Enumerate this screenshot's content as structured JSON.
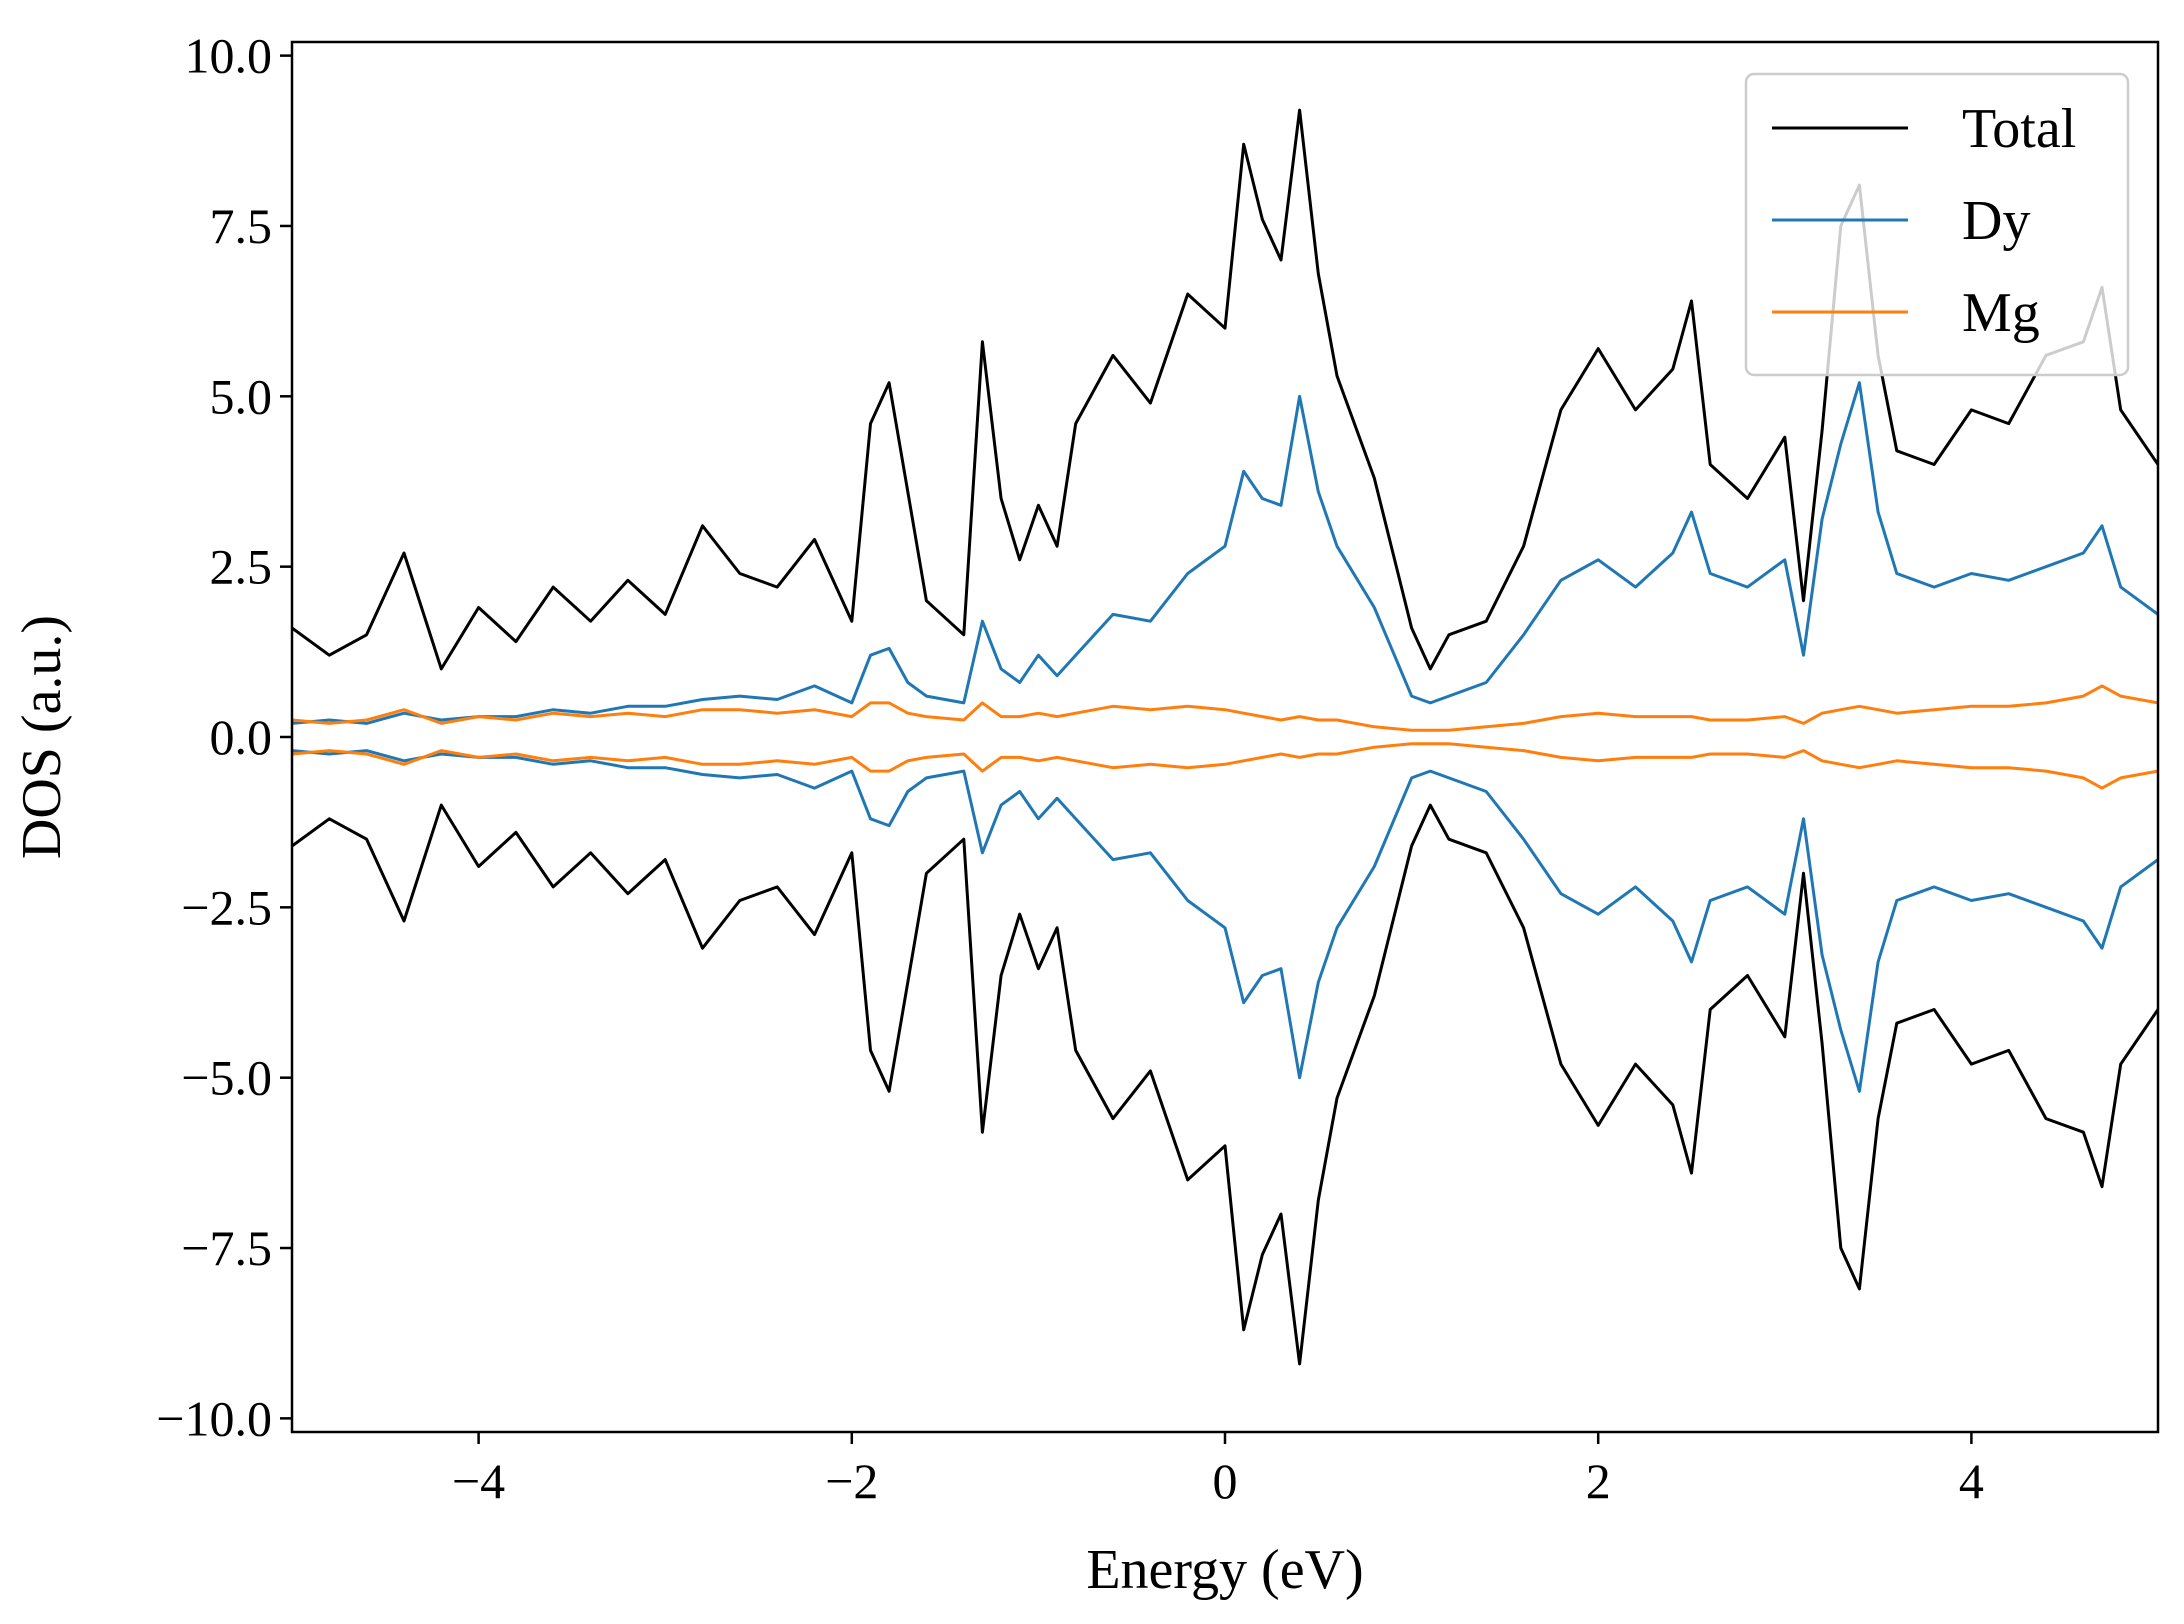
{
  "chart_data": {
    "type": "line",
    "xlabel": "Energy (eV)",
    "ylabel": "DOS (a.u.)",
    "xlim": [
      -5,
      5
    ],
    "ylim": [
      -10.2,
      10.2
    ],
    "xticks": [
      -4,
      -2,
      0,
      2,
      4
    ],
    "xtick_labels": [
      "−4",
      "−2",
      "0",
      "2",
      "4"
    ],
    "yticks": [
      10,
      7.5,
      5,
      2.5,
      0,
      -2.5,
      -5,
      -7.5,
      -10
    ],
    "ytick_labels": [
      "10.0",
      "7.5",
      "5.0",
      "2.5",
      "0.0",
      "−2.5",
      "−5.0",
      "−7.5",
      "−10.0"
    ],
    "grid": false,
    "legend_position": "top-right",
    "mirrored_spin_down": true,
    "x": [
      -5.0,
      -4.8,
      -4.6,
      -4.4,
      -4.2,
      -4.0,
      -3.8,
      -3.6,
      -3.4,
      -3.2,
      -3.0,
      -2.8,
      -2.6,
      -2.4,
      -2.2,
      -2.0,
      -1.9,
      -1.8,
      -1.7,
      -1.6,
      -1.4,
      -1.3,
      -1.2,
      -1.1,
      -1.0,
      -0.9,
      -0.8,
      -0.6,
      -0.4,
      -0.2,
      0.0,
      0.1,
      0.2,
      0.3,
      0.4,
      0.5,
      0.6,
      0.8,
      1.0,
      1.1,
      1.2,
      1.4,
      1.6,
      1.8,
      2.0,
      2.2,
      2.4,
      2.5,
      2.6,
      2.8,
      3.0,
      3.1,
      3.2,
      3.3,
      3.4,
      3.5,
      3.6,
      3.8,
      4.0,
      4.2,
      4.4,
      4.6,
      4.7,
      4.8,
      5.0
    ],
    "series": [
      {
        "name": "Total",
        "color": "#000000",
        "values": [
          1.6,
          1.2,
          1.5,
          2.7,
          1.0,
          1.9,
          1.4,
          2.2,
          1.7,
          2.3,
          1.8,
          3.1,
          2.4,
          2.2,
          2.9,
          1.7,
          4.6,
          5.2,
          3.6,
          2.0,
          1.5,
          5.8,
          3.5,
          2.6,
          3.4,
          2.8,
          4.6,
          5.6,
          4.9,
          6.5,
          6.0,
          8.7,
          7.6,
          7.0,
          9.2,
          6.8,
          5.3,
          3.8,
          1.6,
          1.0,
          1.5,
          1.7,
          2.8,
          4.8,
          5.7,
          4.8,
          5.4,
          6.4,
          4.0,
          3.5,
          4.4,
          2.0,
          4.5,
          7.5,
          8.1,
          5.6,
          4.2,
          4.0,
          4.8,
          4.6,
          5.6,
          5.8,
          6.6,
          4.8,
          4.0
        ]
      },
      {
        "name": "Dy",
        "color": "#1f77b4",
        "values": [
          0.2,
          0.25,
          0.2,
          0.35,
          0.25,
          0.3,
          0.3,
          0.4,
          0.35,
          0.45,
          0.45,
          0.55,
          0.6,
          0.55,
          0.75,
          0.5,
          1.2,
          1.3,
          0.8,
          0.6,
          0.5,
          1.7,
          1.0,
          0.8,
          1.2,
          0.9,
          1.2,
          1.8,
          1.7,
          2.4,
          2.8,
          3.9,
          3.5,
          3.4,
          5.0,
          3.6,
          2.8,
          1.9,
          0.6,
          0.5,
          0.6,
          0.8,
          1.5,
          2.3,
          2.6,
          2.2,
          2.7,
          3.3,
          2.4,
          2.2,
          2.6,
          1.2,
          3.2,
          4.3,
          5.2,
          3.3,
          2.4,
          2.2,
          2.4,
          2.3,
          2.5,
          2.7,
          3.1,
          2.2,
          1.8
        ]
      },
      {
        "name": "Mg",
        "color": "#ff7f0e",
        "values": [
          0.25,
          0.2,
          0.25,
          0.4,
          0.2,
          0.3,
          0.25,
          0.35,
          0.3,
          0.35,
          0.3,
          0.4,
          0.4,
          0.35,
          0.4,
          0.3,
          0.5,
          0.5,
          0.35,
          0.3,
          0.25,
          0.5,
          0.3,
          0.3,
          0.35,
          0.3,
          0.35,
          0.45,
          0.4,
          0.45,
          0.4,
          0.35,
          0.3,
          0.25,
          0.3,
          0.25,
          0.25,
          0.15,
          0.1,
          0.1,
          0.1,
          0.15,
          0.2,
          0.3,
          0.35,
          0.3,
          0.3,
          0.3,
          0.25,
          0.25,
          0.3,
          0.2,
          0.35,
          0.4,
          0.45,
          0.4,
          0.35,
          0.4,
          0.45,
          0.45,
          0.5,
          0.6,
          0.75,
          0.6,
          0.5
        ]
      }
    ]
  }
}
